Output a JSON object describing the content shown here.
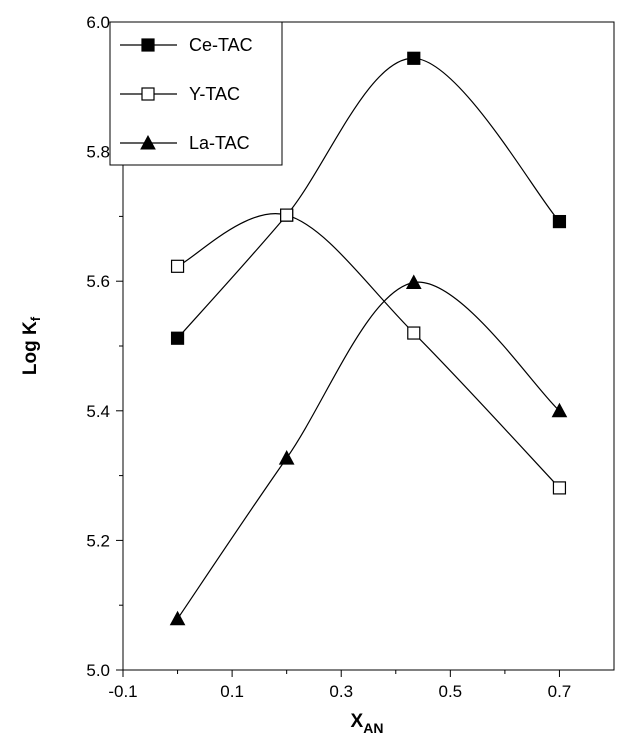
{
  "chart_data": {
    "type": "line",
    "xlabel": "X",
    "xlabel_sub": "AN",
    "ylabel": "Log K",
    "ylabel_sub": "f",
    "xlim": [
      -0.1,
      0.8
    ],
    "ylim": [
      5.0,
      6.0
    ],
    "x_ticks": [
      -0.1,
      0.1,
      0.3,
      0.5,
      0.7
    ],
    "x_tick_labels": [
      "-0.1",
      "0.1",
      "0.3",
      "0.5",
      "0.7"
    ],
    "y_ticks": [
      5.0,
      5.2,
      5.4,
      5.6,
      5.8,
      6.0
    ],
    "y_tick_labels": [
      "5.0",
      "5.2",
      "5.4",
      "5.6",
      "5.8",
      "6.0"
    ],
    "grid": false,
    "legend_position": "top-left",
    "smooth": true,
    "series": [
      {
        "name": "Ce-TAC",
        "marker": "filled-square",
        "x": [
          0,
          0.2,
          0.433,
          0.7
        ],
        "y": [
          5.512,
          5.702,
          5.944,
          5.692
        ]
      },
      {
        "name": "Y-TAC",
        "marker": "open-square",
        "x": [
          0,
          0.2,
          0.433,
          0.7
        ],
        "y": [
          5.623,
          5.702,
          5.52,
          5.281
        ]
      },
      {
        "name": "La-TAC",
        "marker": "filled-triangle",
        "x": [
          0,
          0.2,
          0.433,
          0.7
        ],
        "y": [
          5.079,
          5.327,
          5.598,
          5.4
        ]
      }
    ],
    "colors": {
      "line": "#000000",
      "marker": "#000000",
      "background": "#ffffff"
    }
  }
}
